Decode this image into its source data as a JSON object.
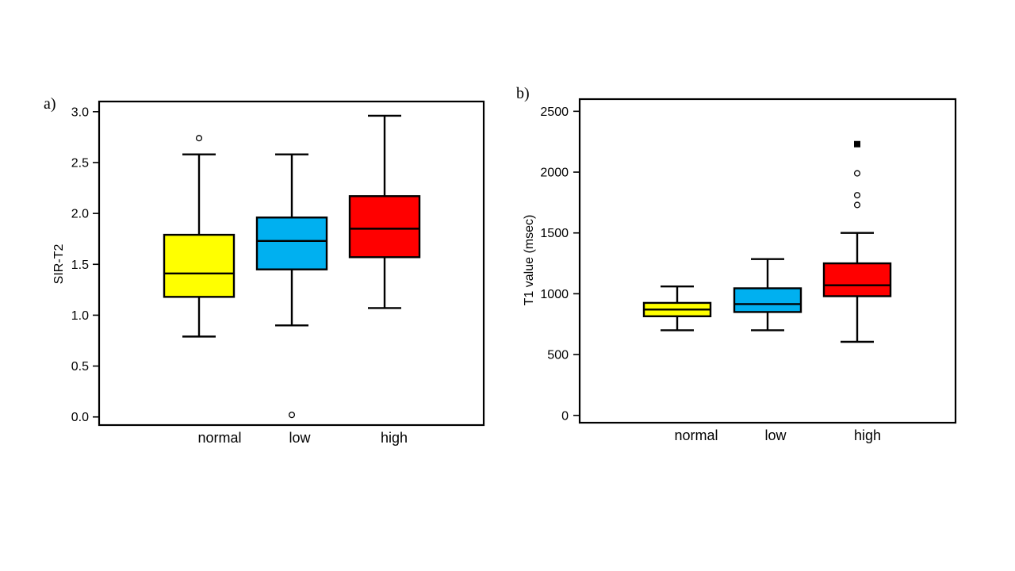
{
  "chart_data": [
    {
      "type": "box",
      "panel_label": "a)",
      "title": "",
      "xlabel": "",
      "ylabel": "SIR-T2",
      "ylim": [
        -0.08,
        3.1
      ],
      "yticks": [
        "0.0",
        "0.5",
        "1.0",
        "1.5",
        "2.0",
        "2.5",
        "3.0"
      ],
      "ytick_values": [
        0,
        0.5,
        1.0,
        1.5,
        2.0,
        2.5,
        3.0
      ],
      "categories": [
        "normal",
        "low",
        "high"
      ],
      "grid": false,
      "legend": "none",
      "boxes": [
        {
          "category": "normal",
          "color": "#ffff00",
          "whisker_low": 0.79,
          "q1": 1.18,
          "median": 1.41,
          "q3": 1.79,
          "whisker_high": 2.58,
          "outliers": [
            2.74
          ],
          "far_outliers": []
        },
        {
          "category": "low",
          "color": "#00b0f0",
          "whisker_low": 0.9,
          "q1": 1.45,
          "median": 1.73,
          "q3": 1.96,
          "whisker_high": 2.58,
          "outliers": [
            0.02
          ],
          "far_outliers": []
        },
        {
          "category": "high",
          "color": "#ff0000",
          "whisker_low": 1.07,
          "q1": 1.57,
          "median": 1.85,
          "q3": 2.17,
          "whisker_high": 2.96,
          "outliers": [],
          "far_outliers": []
        }
      ]
    },
    {
      "type": "box",
      "panel_label": "b)",
      "title": "",
      "xlabel": "",
      "ylabel": "T1 value (msec)",
      "ylim": [
        -60,
        2600
      ],
      "yticks": [
        "0",
        "500",
        "1000",
        "1500",
        "2000",
        "2500"
      ],
      "ytick_values": [
        0,
        500,
        1000,
        1500,
        2000,
        2500
      ],
      "categories": [
        "normal",
        "low",
        "high"
      ],
      "grid": false,
      "legend": "none",
      "boxes": [
        {
          "category": "normal",
          "color": "#ffff00",
          "whisker_low": 700,
          "q1": 815,
          "median": 870,
          "q3": 925,
          "whisker_high": 1060,
          "outliers": [],
          "far_outliers": []
        },
        {
          "category": "low",
          "color": "#00b0f0",
          "whisker_low": 700,
          "q1": 850,
          "median": 915,
          "q3": 1045,
          "whisker_high": 1285,
          "outliers": [],
          "far_outliers": []
        },
        {
          "category": "high",
          "color": "#ff0000",
          "whisker_low": 605,
          "q1": 980,
          "median": 1070,
          "q3": 1250,
          "whisker_high": 1500,
          "outliers": [
            1730,
            1810,
            1990
          ],
          "far_outliers": [
            2230
          ]
        }
      ]
    }
  ]
}
